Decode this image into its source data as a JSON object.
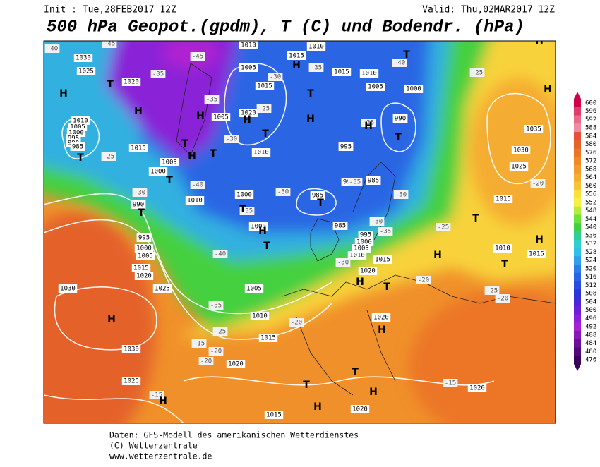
{
  "header": {
    "init": "Init : Tue,28FEB2017 12Z",
    "valid": "Valid: Thu,02MAR2017 12Z",
    "title": "500 hPa Geopot.(gpdm), T (C) und Bodendr. (hPa)"
  },
  "colorbar": {
    "values": [
      600,
      596,
      592,
      588,
      584,
      580,
      576,
      572,
      568,
      564,
      560,
      556,
      552,
      548,
      544,
      540,
      536,
      532,
      528,
      524,
      520,
      516,
      512,
      508,
      504,
      500,
      496,
      492,
      488,
      484,
      480,
      476
    ],
    "colors": [
      "#d0004a",
      "#e23a6a",
      "#ea6a88",
      "#f08aa0",
      "#e8503a",
      "#e4632a",
      "#ec7626",
      "#f08a28",
      "#f39c2c",
      "#f6ae30",
      "#f8c436",
      "#fae03a",
      "#f8f040",
      "#b8ec3c",
      "#70e03c",
      "#40d040",
      "#30d090",
      "#30d0c8",
      "#30c0e8",
      "#30a0e8",
      "#2a80e8",
      "#2a66e4",
      "#2a4ce0",
      "#2a36d8",
      "#4a28d8",
      "#6a20d8",
      "#8a20d8",
      "#a820d0",
      "#8818b8",
      "#6a109a",
      "#50087a",
      "#3a045a"
    ]
  },
  "map": {
    "isobar_labels": [
      "1030",
      "1025",
      "1020",
      "1010",
      "1005",
      "1015",
      "1010",
      "1015",
      "1010",
      "1005",
      "1000",
      "990",
      "1015",
      "1020",
      "1005",
      "1010",
      "995",
      "1010",
      "1005",
      "1000",
      "995",
      "990",
      "985",
      "1015",
      "1005",
      "1000",
      "1010",
      "1000",
      "990",
      "985",
      "1000",
      "985",
      "995",
      "1000",
      "1005",
      "1010",
      "1015",
      "1020",
      "990",
      "995",
      "1000",
      "1005",
      "1015",
      "1020",
      "1025",
      "1030",
      "1005",
      "1010",
      "1015",
      "1020",
      "1030",
      "1025",
      "1020",
      "1015",
      "1020",
      "1020",
      "1015",
      "1010",
      "1015",
      "1035",
      "1030",
      "1025",
      "985"
    ],
    "temperature_labels": [
      "-40",
      "-45",
      "-45",
      "-35",
      "-35",
      "-30",
      "-25",
      "-30",
      "-35",
      "-40",
      "-35",
      "-35",
      "-30",
      "-25",
      "-30",
      "-40",
      "-35",
      "-30",
      "-30",
      "-35",
      "-40",
      "-30",
      "-25",
      "-20",
      "-25",
      "-20",
      "-35",
      "-20",
      "-25",
      "-15",
      "-20",
      "-20",
      "-15",
      "-15",
      "-25",
      "-20"
    ],
    "pressure_centers": [
      "H",
      "T",
      "H",
      "H",
      "T",
      "H",
      "T",
      "T",
      "T",
      "T",
      "H",
      "T",
      "H",
      "T",
      "H",
      "T",
      "T",
      "H",
      "T",
      "T",
      "H",
      "T",
      "H",
      "H",
      "T",
      "H",
      "T",
      "H",
      "H",
      "T",
      "H",
      "T",
      "H",
      "T",
      "H",
      "H",
      "H"
    ]
  },
  "footer": {
    "lines": [
      "Daten: GFS-Modell des amerikanischen Wetterdienstes",
      "(C) Wetterzentrale",
      "www.wetterzentrale.de"
    ]
  }
}
